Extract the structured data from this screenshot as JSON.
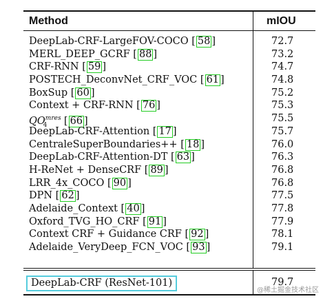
{
  "table": {
    "header": {
      "method": "Method",
      "miou": "mIOU"
    },
    "rows": [
      {
        "method": "DeepLab-CRF-LargeFOV-COCO",
        "ref": "58",
        "miou": "72.7"
      },
      {
        "method": "MERL_DEEP_GCRF",
        "ref": "88",
        "miou": "73.2"
      },
      {
        "method": "CRF-RNN",
        "ref": "59",
        "miou": "74.7"
      },
      {
        "method": "POSTECH_DeconvNet_CRF_VOC",
        "ref": "61",
        "miou": "74.8"
      },
      {
        "method": "BoxSup",
        "ref": "60",
        "miou": "75.2"
      },
      {
        "method": "Context + CRF-RNN",
        "ref": "76",
        "miou": "75.3"
      },
      {
        "method": "QO",
        "method_sup": "mres",
        "method_sub": "4",
        "ref": "66",
        "miou": "75.5"
      },
      {
        "method": "DeepLab-CRF-Attention",
        "ref": "17",
        "miou": "75.7"
      },
      {
        "method": "CentraleSuperBoundaries++",
        "ref": "18",
        "miou": "76.0"
      },
      {
        "method": "DeepLab-CRF-Attention-DT",
        "ref": "63",
        "miou": "76.3"
      },
      {
        "method": "H-ReNet + DenseCRF",
        "ref": "89",
        "miou": "76.8"
      },
      {
        "method": "LRR_4x_COCO",
        "ref": "90",
        "miou": "76.8"
      },
      {
        "method": "DPN",
        "ref": "62",
        "miou": "77.5"
      },
      {
        "method": "Adelaide_Context",
        "ref": "40",
        "miou": "77.8"
      },
      {
        "method": "Oxford_TVG_HO_CRF",
        "ref": "91",
        "miou": "77.9"
      },
      {
        "method": "Context CRF + Guidance CRF",
        "ref": "92",
        "miou": "78.1"
      },
      {
        "method": "Adelaide_VeryDeep_FCN_VOC",
        "ref": "93",
        "miou": "79.1"
      }
    ],
    "final_row": {
      "method": "DeepLab-CRF (ResNet-101)",
      "miou": "79.7"
    }
  },
  "watermark": "@稀土掘金技术社区",
  "colors": {
    "ref_box": "#22cc22",
    "highlight_box": "#55ccdd",
    "text": "#111111"
  }
}
